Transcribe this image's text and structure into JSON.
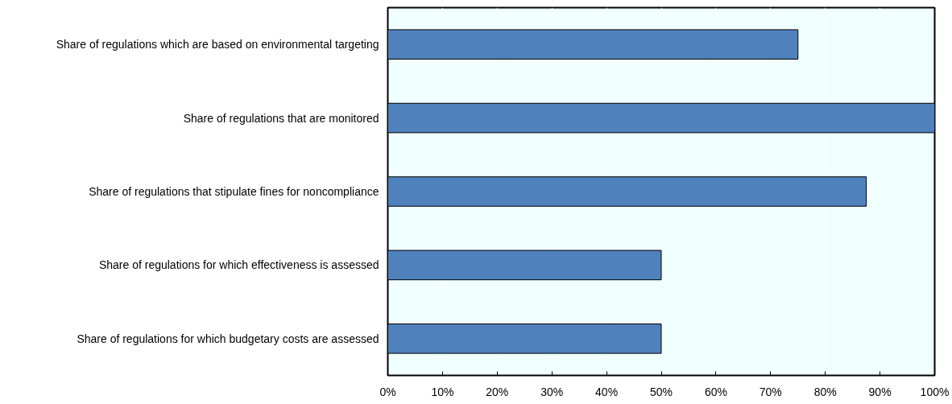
{
  "chart_data": {
    "type": "bar",
    "orientation": "horizontal",
    "categories": [
      "Share of regulations which are based on environmental targeting",
      "Share of regulations that are monitored",
      "Share of regulations that stipulate fines for noncompliance",
      "Share of regulations for which effectiveness is assessed",
      "Share of regulations for which budgetary costs are assessed"
    ],
    "values": [
      75,
      100,
      87.5,
      50,
      50
    ],
    "color": "#4f81bd",
    "xlim": [
      0,
      100
    ],
    "xticks": [
      {
        "value": 0,
        "label": "0%"
      },
      {
        "value": 10,
        "label": "10%"
      },
      {
        "value": 20,
        "label": "20%"
      },
      {
        "value": 30,
        "label": "30%"
      },
      {
        "value": 40,
        "label": "40%"
      },
      {
        "value": 50,
        "label": "50%"
      },
      {
        "value": 60,
        "label": "60%"
      },
      {
        "value": 70,
        "label": "70%"
      },
      {
        "value": 80,
        "label": "80%"
      },
      {
        "value": 90,
        "label": "90%"
      },
      {
        "value": 100,
        "label": "100%"
      }
    ],
    "grid": "x"
  }
}
